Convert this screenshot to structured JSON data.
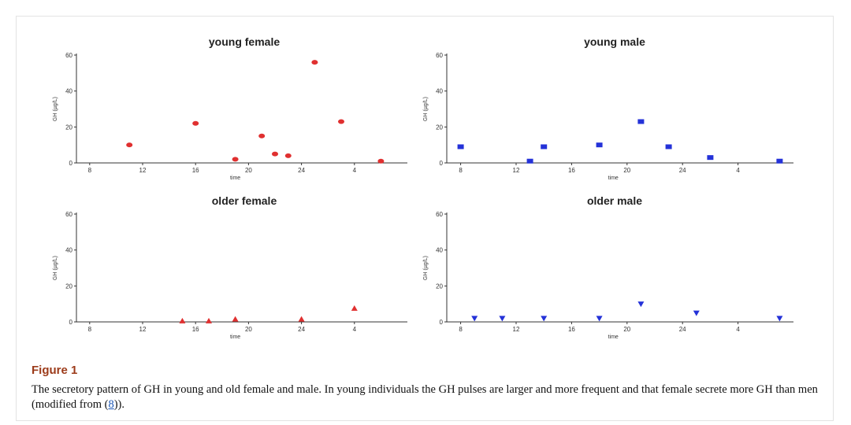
{
  "figure": {
    "heading": "Figure 1",
    "caption_pre": "The secretory pattern of GH in young and old female and male. In young individuals the GH pulses are larger and more frequent and that female secrete more GH than men (modified from (",
    "ref_label": "8",
    "caption_post": "))."
  },
  "chart_data": [
    {
      "type": "scatter",
      "title": "young female",
      "xlabel": "time",
      "ylabel": "GH (µg/L)",
      "color": "#e03030",
      "marker": "circle",
      "x_ticks": [
        8,
        12,
        16,
        20,
        24,
        4
      ],
      "y_ticks": [
        0,
        20,
        40,
        60
      ],
      "ylim": [
        0,
        60
      ],
      "x": [
        11,
        16,
        19,
        21,
        22,
        23,
        25,
        27,
        30
      ],
      "y": [
        10,
        22,
        2,
        15,
        5,
        4,
        56,
        23,
        1
      ]
    },
    {
      "type": "scatter",
      "title": "young male",
      "xlabel": "time",
      "ylabel": "GH (µg/L)",
      "color": "#2432d8",
      "marker": "square",
      "x_ticks": [
        8,
        12,
        16,
        20,
        24,
        4
      ],
      "y_ticks": [
        0,
        20,
        40,
        60
      ],
      "ylim": [
        0,
        60
      ],
      "x": [
        8,
        13,
        14,
        18,
        21,
        23,
        26,
        31
      ],
      "y": [
        9,
        1,
        9,
        10,
        23,
        9,
        3,
        1
      ]
    },
    {
      "type": "scatter",
      "title": "older female",
      "xlabel": "time",
      "ylabel": "GH (µg/L)",
      "color": "#e03030",
      "marker": "triangle-up",
      "x_ticks": [
        8,
        12,
        16,
        20,
        24,
        4
      ],
      "y_ticks": [
        0,
        20,
        40,
        60
      ],
      "ylim": [
        0,
        60
      ],
      "x": [
        15,
        17,
        19,
        24,
        28
      ],
      "y": [
        0.5,
        0.5,
        1.5,
        1.5,
        7.5
      ]
    },
    {
      "type": "scatter",
      "title": "older male",
      "xlabel": "time",
      "ylabel": "GH (µg/L)",
      "color": "#2432d8",
      "marker": "triangle-down",
      "x_ticks": [
        8,
        12,
        16,
        20,
        24,
        4
      ],
      "y_ticks": [
        0,
        20,
        40,
        60
      ],
      "ylim": [
        0,
        60
      ],
      "x": [
        9,
        11,
        14,
        18,
        21,
        25,
        31
      ],
      "y": [
        2,
        2,
        2,
        2,
        10,
        5,
        2
      ]
    }
  ]
}
